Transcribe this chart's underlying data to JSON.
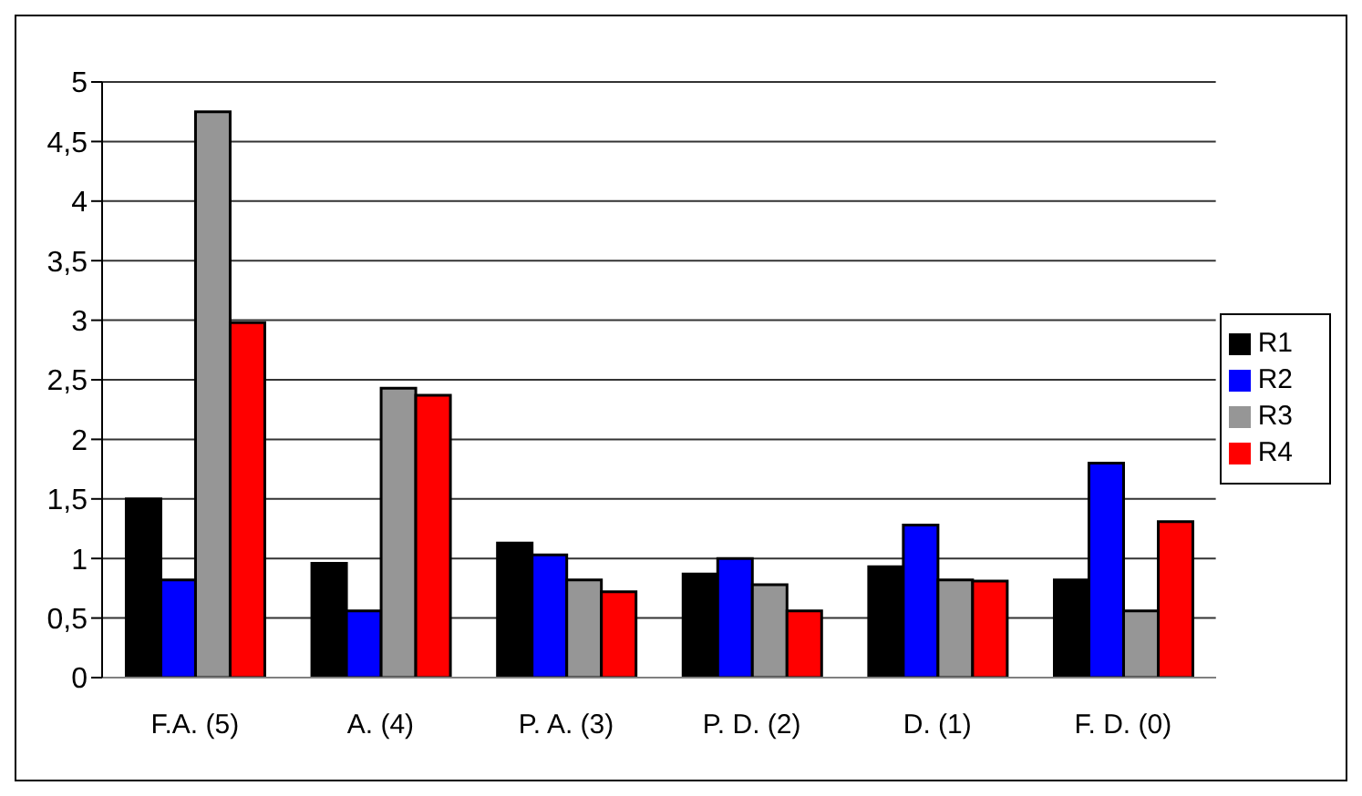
{
  "chart_data": {
    "type": "bar",
    "categories": [
      "F.A. (5)",
      "A. (4)",
      "P. A. (3)",
      "P. D. (2)",
      "D. (1)",
      "F. D. (0)"
    ],
    "series": [
      {
        "name": "R1",
        "color": "#000000",
        "values": [
          1.5,
          0.96,
          1.13,
          0.87,
          0.93,
          0.82
        ]
      },
      {
        "name": "R2",
        "color": "#0000ff",
        "values": [
          0.82,
          0.56,
          1.03,
          1.0,
          1.28,
          1.8
        ]
      },
      {
        "name": "R3",
        "color": "#969696",
        "values": [
          4.75,
          2.43,
          0.82,
          0.78,
          0.82,
          0.56
        ]
      },
      {
        "name": "R4",
        "color": "#ff0000",
        "values": [
          2.98,
          2.37,
          0.72,
          0.56,
          0.81,
          1.31
        ]
      }
    ],
    "ylim": [
      0,
      5
    ],
    "yticks": [
      0,
      {
        "value": 0.5,
        "label": "0,5"
      },
      1,
      {
        "value": 1.5,
        "label": "1,5"
      },
      2,
      {
        "value": 2.5,
        "label": "2,5"
      },
      3,
      {
        "value": 3.5,
        "label": "3,5"
      },
      4,
      {
        "value": 4.5,
        "label": "4,5"
      },
      5
    ],
    "grid": "y",
    "legend": "right"
  }
}
